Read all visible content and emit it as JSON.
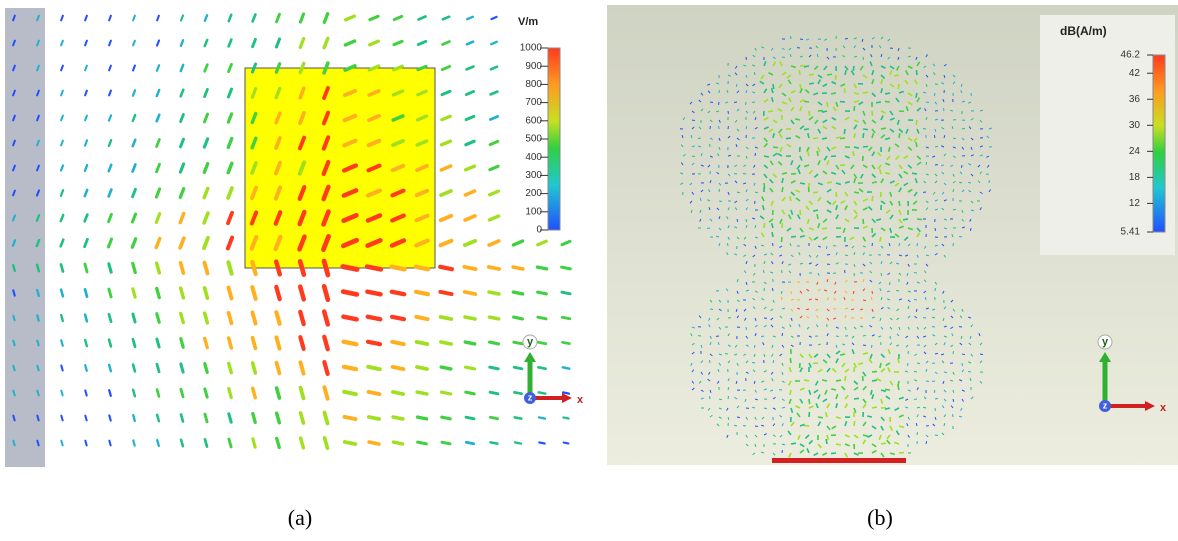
{
  "panels": [
    {
      "legend": {
        "unit": "V/m",
        "lim": [
          0,
          1000
        ],
        "ticks": [
          0,
          100,
          200,
          300,
          400,
          500,
          600,
          700,
          800,
          900,
          1000
        ]
      },
      "axes": {
        "y": "y",
        "x": "x",
        "z": "z"
      },
      "caption": "(a)"
    },
    {
      "legend": {
        "unit": "dB(A/m)",
        "lim": [
          5.41,
          46.2
        ],
        "ticks": [
          46.2,
          42,
          36,
          30,
          24,
          18,
          12,
          5.41
        ]
      },
      "axes": {
        "y": "y",
        "x": "x",
        "z": "z"
      },
      "caption": "(b)"
    }
  ]
}
